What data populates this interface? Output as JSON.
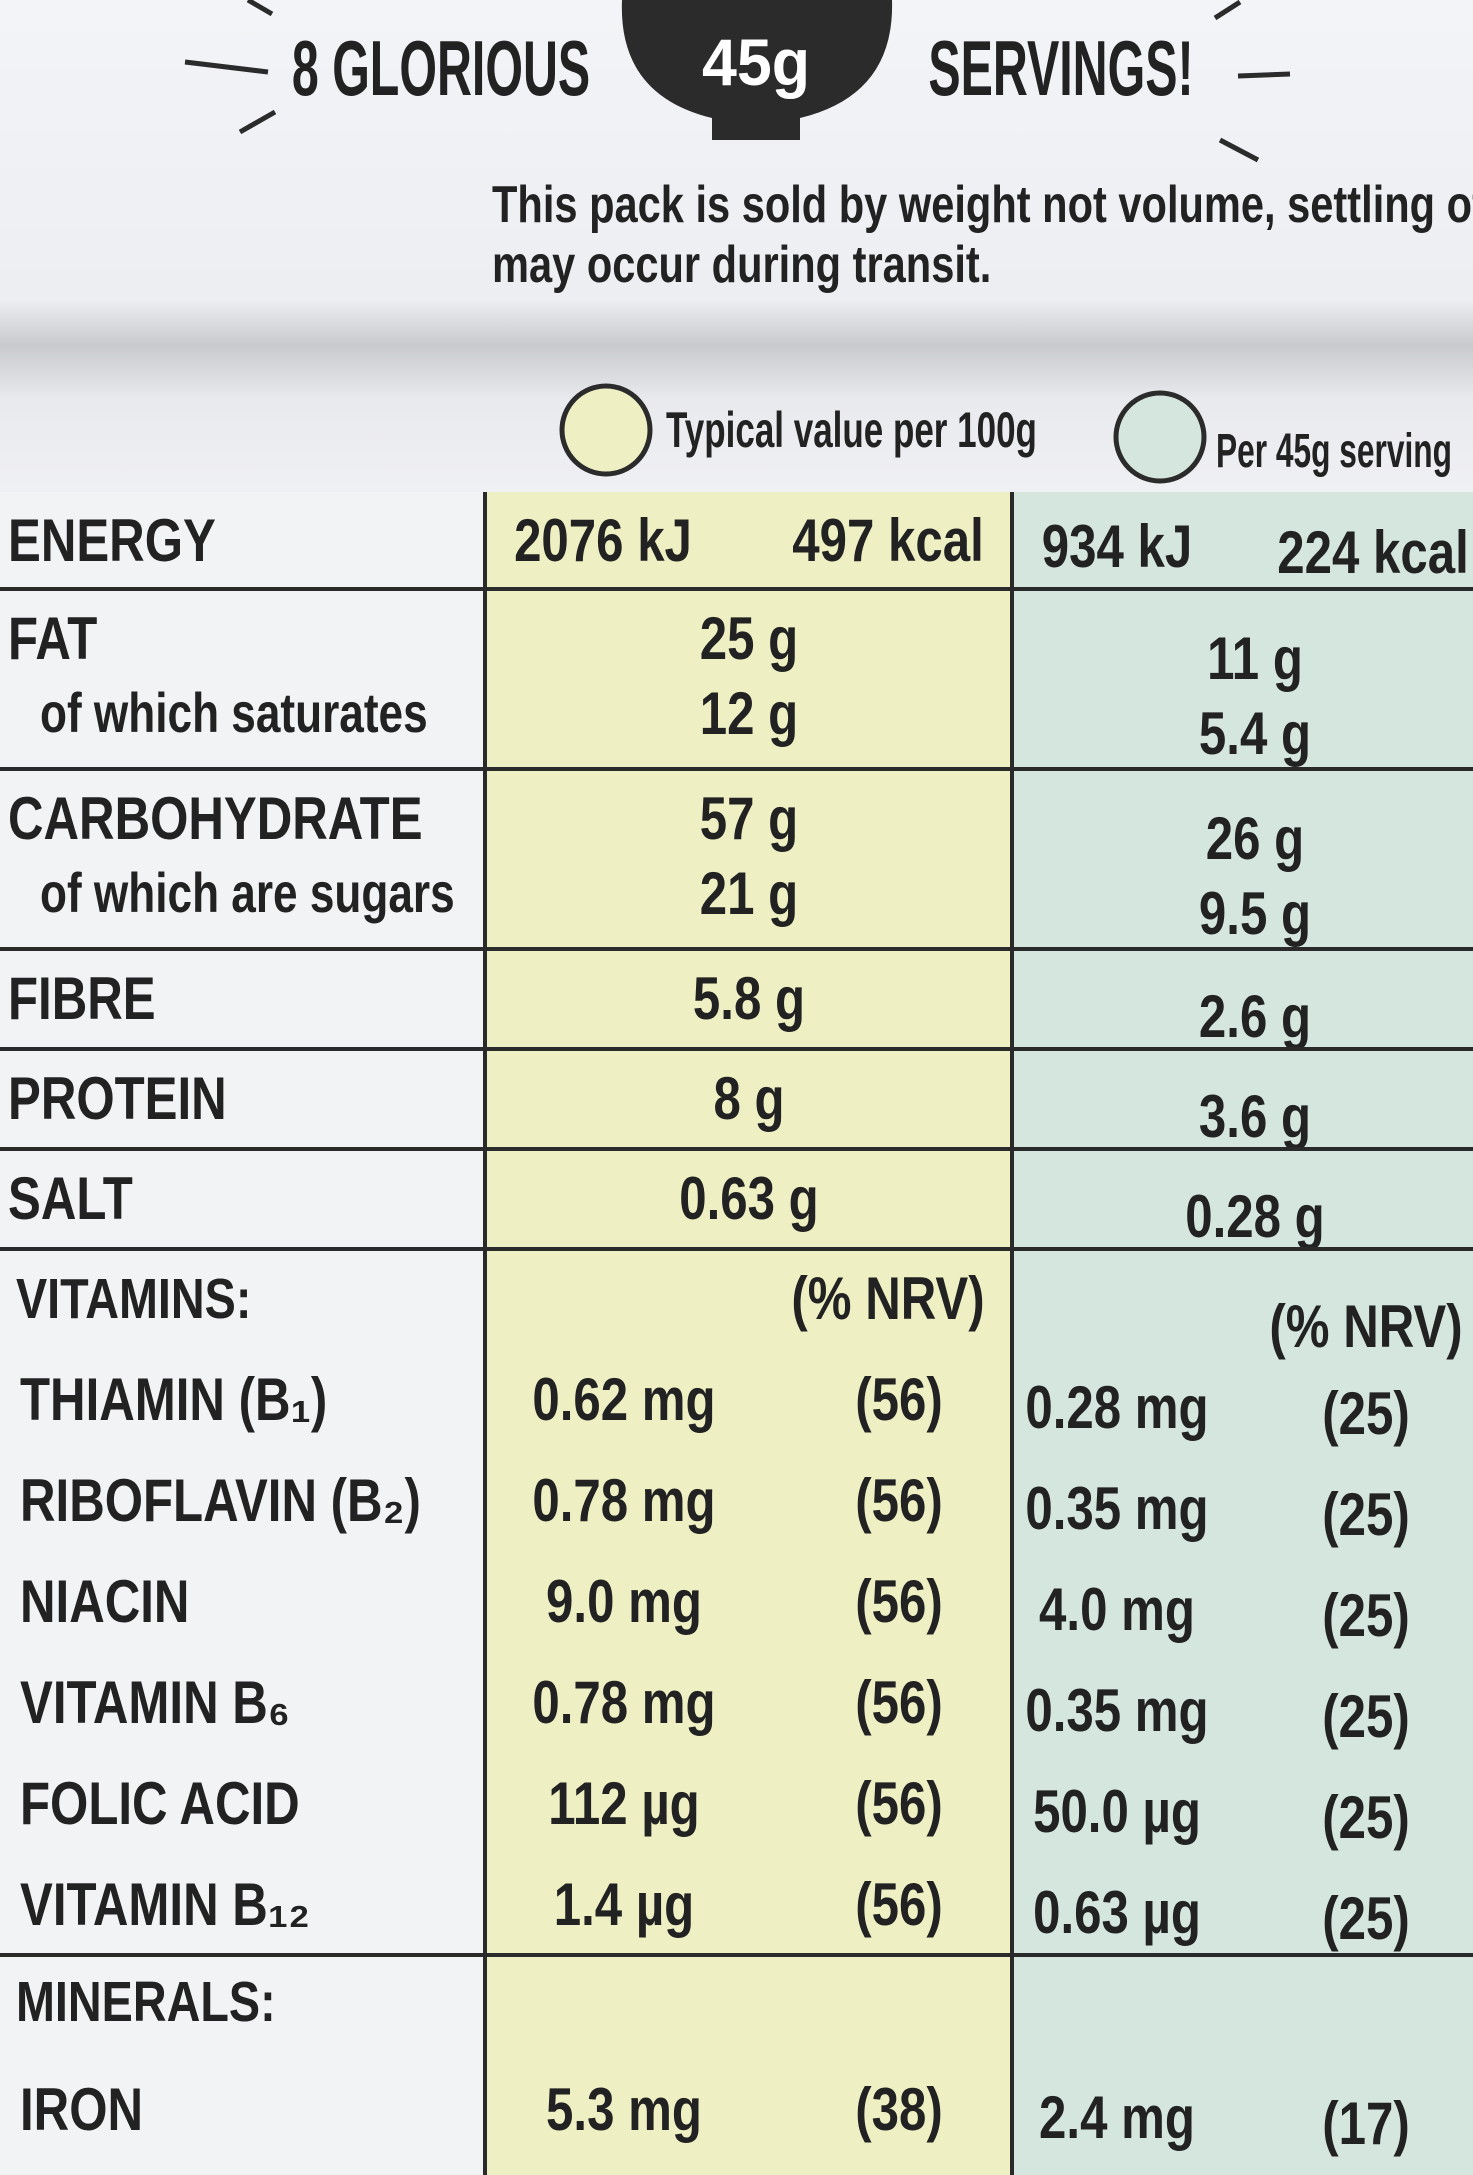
{
  "header": {
    "servings_left": "8 GLORIOUS",
    "badge": "45g",
    "servings_right": "SERVINGS!",
    "notice": [
      "This pack is sold by weight not volume, settling of contents",
      "may occur during transit."
    ]
  },
  "column_headers": {
    "per_100g": "Typical value per 100g",
    "per_serving": "Per 45g serving"
  },
  "energy": {
    "label": "ENERGY",
    "per_100g": [
      "2076 kJ",
      "497 kcal"
    ],
    "per_serving": [
      "934 kJ",
      "224 kcal"
    ]
  },
  "nutrients": [
    {
      "label": "FAT",
      "per_100g": "25 g",
      "per_serving": "11 g",
      "sub": {
        "label": "of which saturates",
        "per_100g": "12 g",
        "per_serving": "5.4 g"
      }
    },
    {
      "label": "CARBOHYDRATE",
      "per_100g": "57 g",
      "per_serving": "26 g",
      "sub": {
        "label": "of which are sugars",
        "per_100g": "21 g",
        "per_serving": "9.5 g"
      }
    },
    {
      "label": "FIBRE",
      "per_100g": "5.8 g",
      "per_serving": "2.6 g"
    },
    {
      "label": "PROTEIN",
      "per_100g": "8 g",
      "per_serving": "3.6 g"
    },
    {
      "label": "SALT",
      "per_100g": "0.63 g",
      "per_serving": "0.28 g"
    }
  ],
  "vitamins": {
    "heading": "VITAMINS:",
    "nrv_100g": "(% NRV)",
    "nrv_serving": "(% NRV)",
    "rows": [
      {
        "label": "THIAMIN (B₁)",
        "per_100g": "0.62 mg",
        "nrv_100g": "(56)",
        "per_serving": "0.28 mg",
        "nrv_serving": "(25)"
      },
      {
        "label": "RIBOFLAVIN (B₂)",
        "per_100g": "0.78 mg",
        "nrv_100g": "(56)",
        "per_serving": "0.35 mg",
        "nrv_serving": "(25)"
      },
      {
        "label": "NIACIN",
        "per_100g": "9.0 mg",
        "nrv_100g": "(56)",
        "per_serving": "4.0 mg",
        "nrv_serving": "(25)"
      },
      {
        "label": "VITAMIN B₆",
        "per_100g": "0.78 mg",
        "nrv_100g": "(56)",
        "per_serving": "0.35 mg",
        "nrv_serving": "(25)"
      },
      {
        "label": "FOLIC ACID",
        "per_100g": "112 µg",
        "nrv_100g": "(56)",
        "per_serving": "50.0 µg",
        "nrv_serving": "(25)"
      },
      {
        "label": "VITAMIN B₁₂",
        "per_100g": "1.4 µg",
        "nrv_100g": "(56)",
        "per_serving": "0.63 µg",
        "nrv_serving": "(25)"
      }
    ]
  },
  "minerals": {
    "heading": "MINERALS:",
    "rows": [
      {
        "label": "IRON",
        "per_100g": "5.3 mg",
        "nrv_100g": "(38)",
        "per_serving": "2.4 mg",
        "nrv_serving": "(17)"
      }
    ]
  }
}
